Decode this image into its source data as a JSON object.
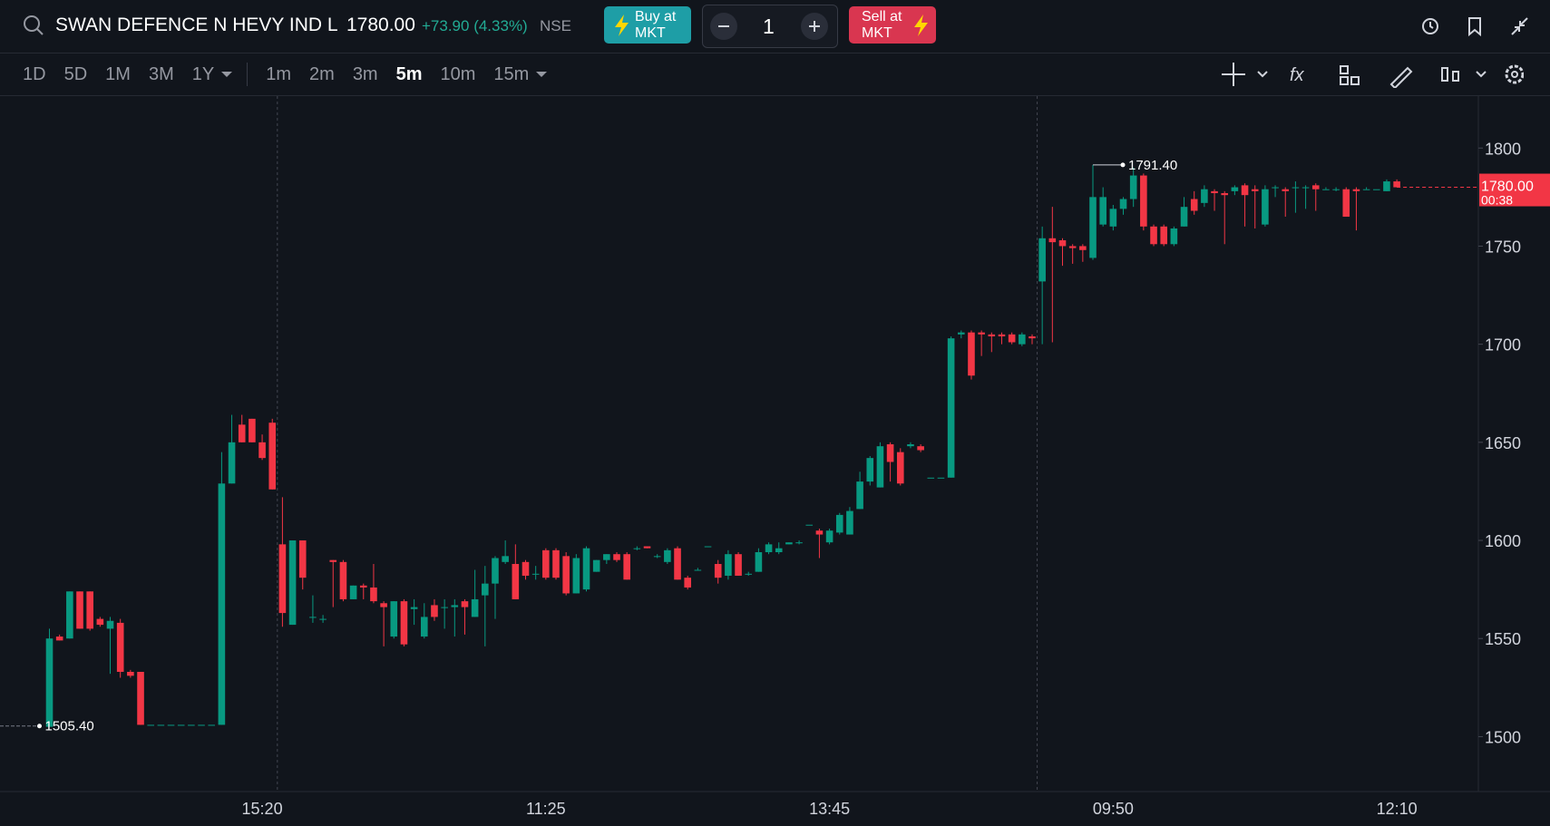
{
  "header": {
    "symbol": "SWAN DEFENCE N HEVY IND L",
    "price": "1780.00",
    "change": "+73.90 (4.33%)",
    "exchange": "NSE",
    "buy": [
      "Buy at",
      "MKT"
    ],
    "quantity": "1",
    "sell": [
      "Sell at",
      "MKT"
    ]
  },
  "toolbar": {
    "ranges": [
      "1D",
      "5D",
      "1M",
      "3M",
      "1Y"
    ],
    "intervals": [
      "1m",
      "2m",
      "3m",
      "5m",
      "10m",
      "15m"
    ],
    "active_interval": "5m"
  },
  "chart_data": {
    "type": "candlestick",
    "up_color": "#089981",
    "down_color": "#f23645",
    "categories": [
      null,
      null,
      null,
      null,
      null,
      null,
      null,
      null,
      null,
      null,
      null,
      null,
      null,
      null,
      null,
      null,
      null,
      null,
      null,
      null,
      null,
      "15:20",
      null,
      null,
      null,
      null,
      null,
      null,
      null,
      null,
      null,
      null,
      null,
      null,
      null,
      null,
      null,
      null,
      null,
      null,
      null,
      null,
      null,
      null,
      null,
      null,
      null,
      null,
      null,
      "11:25",
      null,
      null,
      null,
      null,
      null,
      null,
      null,
      null,
      null,
      null,
      null,
      null,
      null,
      null,
      null,
      null,
      null,
      null,
      null,
      null,
      null,
      null,
      null,
      null,
      null,
      null,
      null,
      "13:45",
      null,
      null,
      null,
      null,
      null,
      null,
      null,
      null,
      null,
      null,
      null,
      null,
      null,
      null,
      null,
      null,
      null,
      null,
      null,
      null,
      null,
      null,
      null,
      null,
      null,
      null,
      null,
      "09:50",
      null,
      null,
      null,
      null,
      null,
      null,
      null,
      null,
      null,
      null,
      null,
      null,
      null,
      null,
      null,
      null,
      null,
      null,
      null,
      null,
      null,
      null,
      null,
      null,
      null,
      null,
      null,
      "12:10"
    ],
    "open": [
      1505,
      1551,
      1550,
      1574,
      1574,
      1560,
      1555,
      1558,
      1533,
      1533,
      1506,
      1506,
      1506,
      1506,
      1506,
      1506,
      1506,
      1506,
      1629,
      1659,
      1662,
      1650,
      1660,
      1598,
      1557,
      1600,
      1561,
      1560,
      1590,
      1589,
      1570,
      1577,
      1576,
      1568,
      1551,
      1569,
      1565,
      1551,
      1567,
      1566,
      1566,
      1569,
      1561,
      1572,
      1578,
      1589,
      1588,
      1589,
      1583,
      1595,
      1595,
      1592,
      1573,
      1575,
      1584,
      1590,
      1593,
      1593,
      1596,
      1597,
      1592,
      1589,
      1596,
      1581,
      1585,
      1597,
      1588,
      1582,
      1593,
      1583,
      1584,
      1594,
      1594,
      1598,
      1599,
      1608,
      1605,
      1599,
      1604,
      1603,
      1616,
      1630,
      1627,
      1649,
      1645,
      1648,
      1648,
      1632,
      1632,
      1632,
      1705,
      1706,
      1706,
      1705,
      1705,
      1705,
      1700,
      1704,
      1732,
      1754,
      1753,
      1750,
      1750,
      1744,
      1761,
      1760,
      1769,
      1774,
      1786,
      1760,
      1760,
      1751,
      1760,
      1774,
      1772,
      1778,
      1777,
      1778,
      1781,
      1779,
      1761,
      1780,
      1779,
      1780,
      1780,
      1781,
      1779,
      1779,
      1779,
      1779,
      1779,
      1779,
      1778,
      1783
    ],
    "high": [
      1555,
      1552,
      1574,
      1574,
      1574,
      1561,
      1561,
      1560,
      1534,
      1533,
      1506,
      1506,
      1506,
      1506,
      1506,
      1506,
      1506,
      1645,
      1664,
      1664,
      1662,
      1654,
      1662,
      1622,
      1600,
      1600,
      1572,
      1562,
      1590,
      1590,
      1577,
      1578,
      1588,
      1569,
      1569,
      1570,
      1570,
      1568,
      1570,
      1570,
      1570,
      1570,
      1585,
      1587,
      1592,
      1600,
      1598,
      1590,
      1587,
      1596,
      1596,
      1594,
      1593,
      1597,
      1590,
      1593,
      1594,
      1594,
      1597,
      1597,
      1593,
      1596,
      1597,
      1582,
      1586,
      1597,
      1590,
      1595,
      1594,
      1584,
      1596,
      1599,
      1599,
      1599,
      1600,
      1608,
      1606,
      1606,
      1614,
      1617,
      1635,
      1643,
      1650,
      1650,
      1647,
      1650,
      1649,
      1632,
      1632,
      1704,
      1707,
      1707,
      1707,
      1706,
      1706,
      1706,
      1706,
      1705,
      1760,
      1770,
      1754,
      1751,
      1751,
      1791.4,
      1780,
      1771,
      1775,
      1790,
      1787,
      1761,
      1761,
      1760,
      1775,
      1778,
      1781,
      1779,
      1778,
      1781,
      1782,
      1781,
      1781,
      1781,
      1780,
      1783,
      1781,
      1782,
      1780,
      1780,
      1780,
      1780,
      1780,
      1779,
      1784,
      1784
    ],
    "low": [
      1505.4,
      1549,
      1550,
      1555,
      1554,
      1556,
      1532,
      1530,
      1530,
      1506,
      1506,
      1506,
      1506,
      1506,
      1506,
      1506,
      1506,
      1506,
      1629,
      1650,
      1650,
      1641,
      1626,
      1556,
      1557,
      1575,
      1558,
      1558,
      1566,
      1569,
      1570,
      1570,
      1568,
      1546,
      1550,
      1546,
      1557,
      1550,
      1559,
      1555,
      1551,
      1552,
      1561,
      1546,
      1560,
      1588,
      1570,
      1580,
      1580,
      1580,
      1580,
      1572,
      1573,
      1574,
      1584,
      1588,
      1589,
      1580,
      1595,
      1596,
      1591,
      1588,
      1580,
      1575,
      1585,
      1597,
      1578,
      1580,
      1582,
      1582,
      1584,
      1593,
      1593,
      1598,
      1598,
      1608,
      1591,
      1598,
      1603,
      1603,
      1616,
      1628,
      1627,
      1630,
      1628,
      1647,
      1645,
      1632,
      1632,
      1632,
      1703,
      1682,
      1694,
      1696,
      1700,
      1700,
      1699,
      1700,
      1700,
      1701,
      1740,
      1741,
      1742,
      1743,
      1760,
      1758,
      1766,
      1770,
      1758,
      1750,
      1750,
      1750,
      1760,
      1766,
      1770,
      1768,
      1751,
      1776,
      1760,
      1759,
      1760,
      1775,
      1765,
      1767,
      1769,
      1768,
      1779,
      1778,
      1765,
      1758,
      1779,
      1779,
      1778,
      1780
    ],
    "close": [
      1550,
      1549,
      1574,
      1555,
      1555,
      1557,
      1559,
      1533,
      1531,
      1506,
      1506,
      1506,
      1506,
      1506,
      1506,
      1506,
      1506,
      1629,
      1650,
      1650,
      1650,
      1642,
      1626,
      1563,
      1600,
      1581,
      1561,
      1560,
      1589,
      1570,
      1577,
      1576,
      1569,
      1566,
      1569,
      1547,
      1566,
      1561,
      1561,
      1566,
      1567,
      1566,
      1570,
      1578,
      1591,
      1592,
      1570,
      1582,
      1583,
      1581,
      1581,
      1573,
      1591,
      1596,
      1590,
      1593,
      1590,
      1580,
      1596,
      1596,
      1592,
      1595,
      1580,
      1576,
      1585,
      1597,
      1581,
      1593,
      1582,
      1583,
      1594,
      1598,
      1596,
      1599,
      1599,
      1608,
      1603,
      1605,
      1613,
      1615,
      1630,
      1642,
      1648,
      1640,
      1629,
      1649,
      1646,
      1632,
      1632,
      1703,
      1706,
      1684,
      1705,
      1704,
      1704,
      1701,
      1705,
      1703,
      1754,
      1752,
      1750,
      1749,
      1748,
      1775,
      1775,
      1769,
      1774,
      1786,
      1760,
      1751,
      1751,
      1759,
      1770,
      1768,
      1779,
      1777,
      1776,
      1780,
      1776,
      1778,
      1779,
      1780,
      1778,
      1780,
      1780,
      1779,
      1779,
      1779,
      1765,
      1778,
      1779,
      1779,
      1783,
      1780
    ],
    "ylim": [
      1472,
      1826
    ],
    "yticks": [
      1500,
      1550,
      1600,
      1650,
      1700,
      1750,
      1800
    ],
    "high_label": "1791.40",
    "low_label": "1505.40",
    "last_price_label": "1780.00",
    "countdown": "00:38"
  }
}
